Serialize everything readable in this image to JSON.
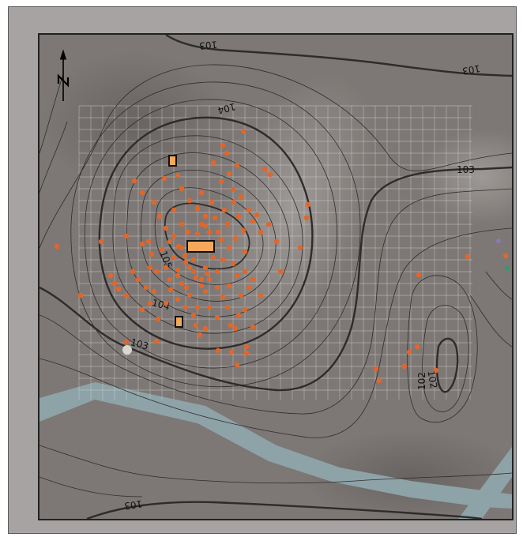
{
  "map": {
    "contour_labels": [
      "103",
      "103",
      "104",
      "103",
      "105",
      "104",
      "103",
      "102",
      "102",
      "103"
    ],
    "north_arrow": {
      "label": "N",
      "icon": "north-arrow-icon"
    },
    "colors": {
      "terrain": "#7d7875",
      "frame": "#a7a3a3",
      "water": "#8ea3a8",
      "grid": "#d8d8d8",
      "contour": "#2e2c2b",
      "artifact": "#e2662a",
      "structure": "#f5a85a",
      "marker_purple": "#8b79b3",
      "marker_green": "#2f9a6c"
    }
  }
}
